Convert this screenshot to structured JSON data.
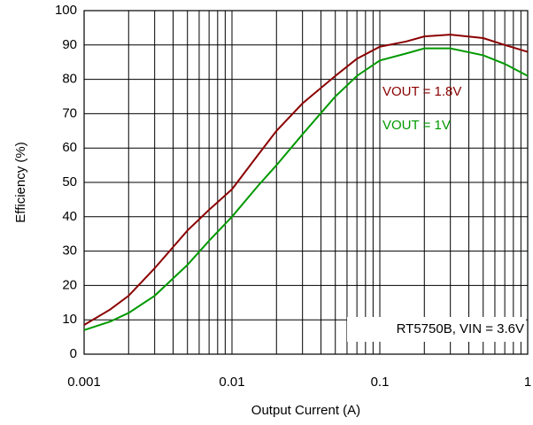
{
  "chart_data": {
    "type": "line",
    "xlabel": "Output Current (A)",
    "ylabel": "Efficiency (%)",
    "annotation": "RT5750B, VIN = 3.6V",
    "x": [
      0.001,
      0.0015,
      0.002,
      0.003,
      0.005,
      0.007,
      0.01,
      0.015,
      0.02,
      0.03,
      0.05,
      0.07,
      0.1,
      0.15,
      0.2,
      0.3,
      0.5,
      0.7,
      1
    ],
    "series": [
      {
        "name": "VOUT = 1.8V",
        "color": "#8b0000",
        "values": [
          8.5,
          13,
          17,
          25,
          36,
          42,
          48,
          58,
          65,
          73,
          81,
          86,
          89.5,
          91,
          92.5,
          93,
          92,
          90,
          88
        ]
      },
      {
        "name": "VOUT = 1V",
        "color": "#009900",
        "values": [
          7,
          9.5,
          12,
          17,
          26,
          33,
          40,
          49,
          55,
          64,
          75,
          81,
          85.5,
          87.5,
          89,
          89,
          87,
          84.5,
          81
        ]
      }
    ],
    "xscale": "log",
    "xlim": [
      0.001,
      1
    ],
    "xticks": [
      0.001,
      0.01,
      0.1,
      1
    ],
    "ylim": [
      0,
      100
    ],
    "yticks": [
      0,
      10,
      20,
      30,
      40,
      50,
      60,
      70,
      80,
      90,
      100
    ],
    "grid": true
  }
}
